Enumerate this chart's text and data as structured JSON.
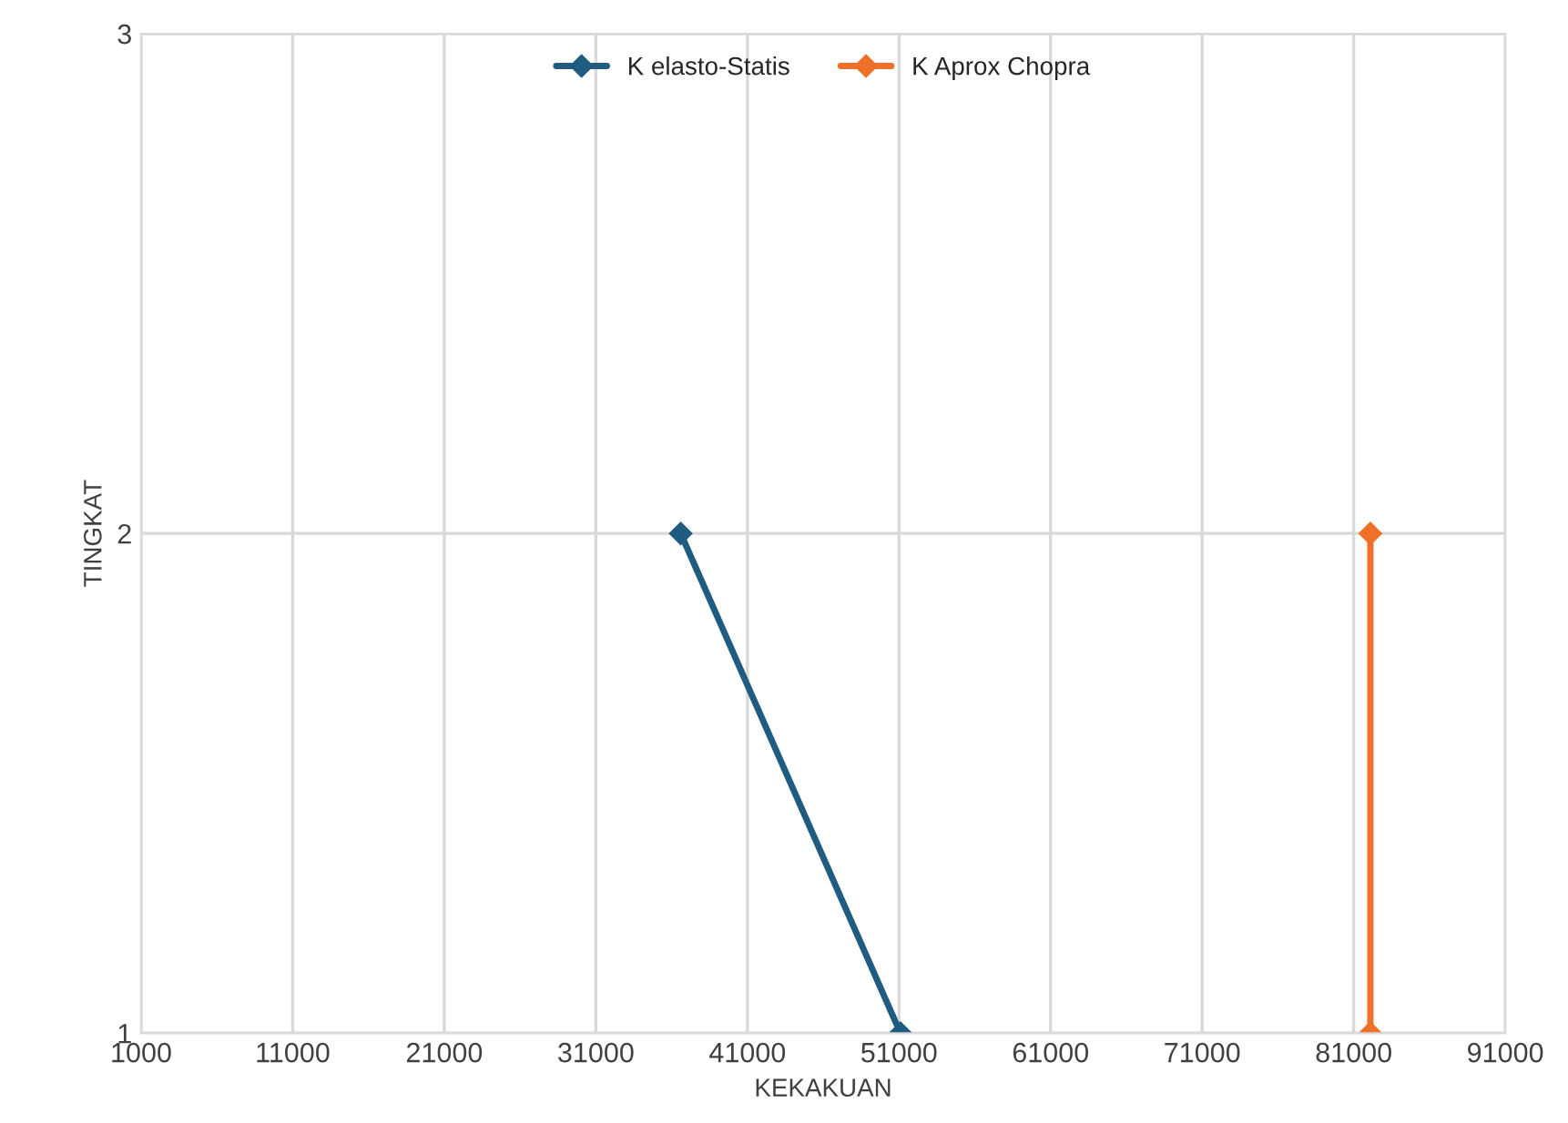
{
  "chart_data": {
    "type": "line",
    "xlabel": "KEKAKUAN",
    "ylabel": "TINGKAT",
    "series": [
      {
        "name": "K elasto-Statis",
        "color": "#1f5c7f",
        "x": [
          36600,
          51100
        ],
        "values": [
          2,
          1
        ]
      },
      {
        "name": "K Aprox Chopra",
        "color": "#ee7029",
        "x": [
          82100,
          82100
        ],
        "values": [
          2,
          1
        ]
      }
    ],
    "xlim": [
      1000,
      91000
    ],
    "xticks": [
      1000,
      11000,
      21000,
      31000,
      41000,
      51000,
      61000,
      71000,
      81000,
      91000
    ],
    "ylim": [
      1,
      3
    ],
    "yticks": [
      1,
      2,
      3
    ],
    "grid": true,
    "legend": "top",
    "marker": "diamond",
    "line_style": "solid"
  }
}
